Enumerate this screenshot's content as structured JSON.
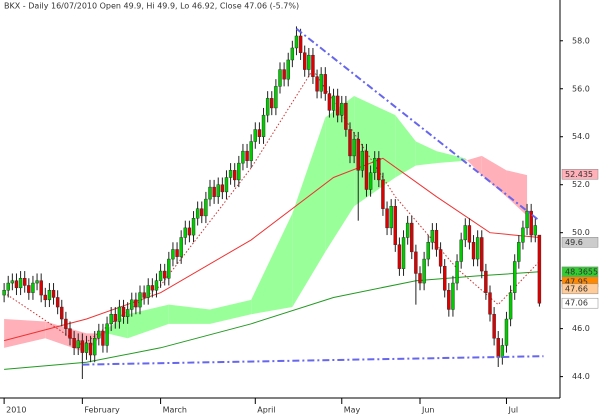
{
  "chart_data": {
    "type": "candlestick",
    "title": "BKX - Daily 16/07/2010 Open 49.9, Hi 49.9, Lo 46.92, Close 47.06 (-5.7%)",
    "up_color": "#00cc00",
    "down_color": "#dd0000",
    "ylim": [
      43.15,
      59.7
    ],
    "yticks": [
      {
        "value": 44,
        "label": "44.0"
      },
      {
        "value": 46,
        "label": "46.0"
      },
      {
        "value": 48,
        "label": "48.0"
      },
      {
        "value": 50,
        "label": "50.0"
      },
      {
        "value": 52,
        "label": "52.0"
      },
      {
        "value": 54,
        "label": "54.0"
      },
      {
        "value": 56,
        "label": "56.0"
      },
      {
        "value": 58,
        "label": "58.0"
      }
    ],
    "xlim": [
      -1,
      135
    ],
    "xticks": [
      {
        "value": 0,
        "label": "2010"
      },
      {
        "value": 19,
        "label": "February"
      },
      {
        "value": 38,
        "label": "March"
      },
      {
        "value": 61,
        "label": "April"
      },
      {
        "value": 82,
        "label": "May"
      },
      {
        "value": 101,
        "label": "Jun"
      },
      {
        "value": 122,
        "label": "Jul"
      }
    ],
    "candles": [
      [
        47.4,
        47.9,
        47.1,
        47.6
      ],
      [
        47.6,
        48.2,
        47.3,
        47.9
      ],
      [
        47.9,
        48.3,
        47.6,
        48.0
      ],
      [
        48.0,
        48.3,
        47.4,
        47.7
      ],
      [
        47.7,
        48.4,
        47.4,
        48.1
      ],
      [
        48.1,
        48.4,
        47.5,
        47.8
      ],
      [
        47.8,
        48.1,
        47.2,
        47.5
      ],
      [
        47.5,
        48.2,
        47.2,
        47.9
      ],
      [
        47.9,
        48.3,
        47.6,
        48.0
      ],
      [
        48.0,
        48.3,
        47.1,
        47.4
      ],
      [
        47.4,
        47.7,
        46.9,
        47.2
      ],
      [
        47.2,
        47.9,
        46.9,
        47.6
      ],
      [
        47.6,
        47.9,
        47.0,
        47.3
      ],
      [
        47.3,
        47.6,
        46.6,
        46.9
      ],
      [
        46.9,
        47.2,
        46.1,
        46.4
      ],
      [
        46.4,
        46.7,
        45.7,
        46.0
      ],
      [
        46.0,
        46.3,
        45.3,
        45.6
      ],
      [
        45.6,
        45.9,
        44.9,
        45.2
      ],
      [
        45.2,
        45.8,
        44.9,
        45.5
      ],
      [
        45.5,
        45.8,
        43.9,
        45.0
      ],
      [
        45.0,
        45.7,
        44.7,
        45.4
      ],
      [
        45.4,
        45.7,
        44.6,
        44.9
      ],
      [
        44.9,
        45.9,
        44.6,
        45.6
      ],
      [
        45.6,
        46.2,
        45.3,
        45.9
      ],
      [
        45.9,
        46.2,
        45.0,
        45.3
      ],
      [
        45.3,
        46.5,
        45.0,
        46.2
      ],
      [
        46.2,
        46.9,
        45.9,
        46.6
      ],
      [
        46.6,
        46.9,
        46.0,
        46.3
      ],
      [
        46.3,
        47.2,
        46.0,
        46.9
      ],
      [
        46.9,
        47.2,
        46.2,
        46.5
      ],
      [
        46.5,
        47.1,
        46.2,
        46.8
      ],
      [
        46.8,
        47.5,
        46.5,
        47.2
      ],
      [
        47.2,
        47.5,
        46.6,
        46.9
      ],
      [
        46.9,
        47.8,
        46.6,
        47.5
      ],
      [
        47.5,
        47.8,
        47.0,
        47.3
      ],
      [
        47.3,
        48.1,
        47.0,
        47.8
      ],
      [
        47.8,
        48.1,
        47.3,
        47.6
      ],
      [
        47.6,
        48.3,
        47.3,
        48.0
      ],
      [
        48.0,
        48.7,
        47.7,
        48.4
      ],
      [
        48.4,
        48.7,
        47.8,
        48.1
      ],
      [
        48.1,
        49.2,
        47.8,
        48.9
      ],
      [
        48.9,
        49.6,
        48.6,
        49.3
      ],
      [
        49.3,
        49.6,
        48.7,
        49.0
      ],
      [
        49.0,
        50.1,
        48.7,
        49.8
      ],
      [
        49.8,
        50.5,
        49.5,
        50.2
      ],
      [
        50.2,
        50.5,
        49.6,
        49.9
      ],
      [
        49.9,
        50.9,
        49.6,
        50.6
      ],
      [
        50.6,
        51.3,
        50.3,
        51.0
      ],
      [
        51.0,
        51.3,
        50.4,
        50.7
      ],
      [
        50.7,
        51.7,
        50.4,
        51.4
      ],
      [
        51.4,
        52.2,
        51.1,
        51.9
      ],
      [
        51.9,
        52.2,
        51.2,
        51.5
      ],
      [
        51.5,
        52.3,
        51.2,
        52.0
      ],
      [
        52.0,
        52.3,
        51.4,
        51.7
      ],
      [
        51.7,
        52.6,
        51.4,
        52.3
      ],
      [
        52.3,
        52.9,
        52.0,
        52.6
      ],
      [
        52.6,
        52.9,
        51.9,
        52.2
      ],
      [
        52.2,
        53.2,
        51.9,
        52.9
      ],
      [
        52.9,
        53.7,
        52.6,
        53.4
      ],
      [
        53.4,
        53.7,
        52.7,
        53.0
      ],
      [
        53.0,
        54.1,
        52.7,
        53.8
      ],
      [
        53.8,
        54.6,
        53.5,
        54.3
      ],
      [
        54.3,
        54.6,
        53.7,
        54.0
      ],
      [
        54.0,
        55.2,
        53.7,
        54.9
      ],
      [
        54.9,
        55.9,
        54.6,
        55.6
      ],
      [
        55.6,
        55.9,
        54.9,
        55.2
      ],
      [
        55.2,
        56.4,
        54.9,
        56.1
      ],
      [
        56.1,
        57.1,
        55.8,
        56.8
      ],
      [
        56.8,
        57.1,
        56.1,
        56.4
      ],
      [
        56.4,
        57.5,
        56.1,
        57.2
      ],
      [
        57.2,
        58.0,
        56.9,
        57.7
      ],
      [
        57.7,
        58.6,
        57.4,
        58.2
      ],
      [
        58.2,
        58.5,
        57.2,
        57.5
      ],
      [
        57.5,
        57.8,
        56.5,
        56.8
      ],
      [
        56.8,
        57.7,
        56.5,
        57.4
      ],
      [
        57.4,
        57.7,
        56.2,
        56.5
      ],
      [
        56.5,
        56.8,
        55.6,
        55.9
      ],
      [
        55.9,
        56.9,
        55.6,
        56.6
      ],
      [
        56.6,
        56.9,
        55.5,
        55.8
      ],
      [
        55.8,
        56.1,
        54.8,
        55.1
      ],
      [
        55.1,
        56.0,
        54.8,
        55.7
      ],
      [
        55.7,
        56.0,
        54.6,
        54.9
      ],
      [
        54.9,
        55.7,
        54.6,
        55.4
      ],
      [
        55.4,
        55.7,
        54.0,
        54.3
      ],
      [
        54.3,
        54.6,
        52.9,
        53.2
      ],
      [
        53.2,
        54.2,
        52.9,
        53.9
      ],
      [
        53.9,
        54.2,
        50.5,
        52.6
      ],
      [
        52.6,
        53.7,
        52.3,
        53.4
      ],
      [
        53.4,
        53.7,
        51.5,
        51.8
      ],
      [
        51.8,
        52.8,
        51.5,
        52.5
      ],
      [
        52.5,
        53.4,
        52.2,
        53.1
      ],
      [
        53.1,
        53.4,
        51.9,
        52.2
      ],
      [
        52.2,
        52.5,
        50.7,
        51.0
      ],
      [
        51.0,
        51.3,
        49.9,
        50.2
      ],
      [
        50.2,
        51.4,
        49.9,
        51.1
      ],
      [
        51.1,
        51.4,
        49.2,
        49.5
      ],
      [
        49.5,
        49.8,
        48.2,
        48.5
      ],
      [
        48.5,
        50.1,
        48.2,
        49.8
      ],
      [
        49.8,
        50.7,
        49.5,
        50.4
      ],
      [
        50.4,
        50.7,
        48.9,
        49.2
      ],
      [
        49.2,
        49.5,
        47.0,
        48.3
      ],
      [
        48.3,
        48.6,
        47.6,
        47.9
      ],
      [
        47.9,
        49.2,
        47.6,
        48.9
      ],
      [
        48.9,
        49.9,
        48.6,
        49.6
      ],
      [
        49.6,
        50.4,
        49.3,
        50.1
      ],
      [
        50.1,
        50.4,
        49.0,
        49.3
      ],
      [
        49.3,
        49.6,
        48.3,
        48.6
      ],
      [
        48.6,
        48.9,
        47.3,
        47.6
      ],
      [
        47.6,
        47.9,
        46.5,
        46.8
      ],
      [
        46.8,
        48.2,
        46.5,
        47.9
      ],
      [
        47.9,
        49.1,
        47.6,
        48.8
      ],
      [
        48.8,
        50.0,
        48.5,
        49.7
      ],
      [
        49.7,
        50.6,
        49.4,
        50.3
      ],
      [
        50.3,
        50.6,
        49.3,
        49.6
      ],
      [
        49.6,
        49.9,
        48.6,
        48.9
      ],
      [
        48.9,
        50.1,
        48.6,
        49.8
      ],
      [
        49.8,
        50.1,
        48.1,
        48.4
      ],
      [
        48.4,
        48.7,
        47.2,
        47.5
      ],
      [
        47.5,
        47.8,
        46.3,
        46.6
      ],
      [
        46.6,
        46.9,
        45.3,
        45.6
      ],
      [
        45.6,
        45.9,
        44.4,
        44.8
      ],
      [
        44.8,
        45.6,
        44.5,
        45.3
      ],
      [
        45.3,
        46.7,
        45.0,
        46.4
      ],
      [
        46.4,
        47.8,
        46.1,
        47.5
      ],
      [
        47.5,
        49.1,
        47.2,
        48.8
      ],
      [
        48.8,
        49.9,
        48.5,
        49.6
      ],
      [
        49.6,
        50.5,
        49.3,
        50.2
      ],
      [
        50.2,
        51.2,
        49.9,
        50.9
      ],
      [
        50.9,
        51.2,
        49.6,
        49.9
      ],
      [
        49.9,
        50.6,
        49.6,
        50.3
      ],
      [
        49.9,
        49.9,
        46.92,
        47.06
      ]
    ],
    "cloud": {
      "up_color": "#99ff99",
      "down_color": "#ffb0b8",
      "x": [
        0,
        10,
        20,
        25,
        30,
        40,
        50,
        60,
        70,
        78,
        85,
        95,
        100,
        105,
        112,
        116,
        122,
        127
      ],
      "span_a": [
        45.2,
        45.6,
        45.0,
        46.0,
        46.6,
        47.0,
        46.8,
        47.2,
        50.8,
        54.8,
        55.7,
        54.9,
        53.8,
        53.4,
        53.1,
        52.4,
        51.5,
        50.7
      ],
      "span_b": [
        46.4,
        46.3,
        45.8,
        45.8,
        45.6,
        46.2,
        46.2,
        46.6,
        46.9,
        49.2,
        51.1,
        52.3,
        52.8,
        52.9,
        53.0,
        53.2,
        52.6,
        52.4
      ]
    },
    "series": [
      {
        "color": "#ee3333",
        "dashed": false,
        "x": [
          0,
          20,
          38,
          60,
          80,
          92,
          105,
          118,
          130
        ],
        "values": [
          45.5,
          46.4,
          47.5,
          49.7,
          52.3,
          53.1,
          51.5,
          50.0,
          49.8
        ]
      },
      {
        "color": "#229922",
        "dashed": false,
        "x": [
          0,
          20,
          38,
          60,
          80,
          100,
          115,
          130
        ],
        "values": [
          44.3,
          44.6,
          45.2,
          46.2,
          47.3,
          48.0,
          48.2,
          48.37
        ]
      },
      {
        "color": "#cc3333",
        "dashed": true,
        "x": [
          0,
          19,
          38,
          60,
          75,
          95,
          110,
          120,
          130
        ],
        "values": [
          47.5,
          45.3,
          47.8,
          52.7,
          56.8,
          51.5,
          48.5,
          47.0,
          48.8
        ]
      }
    ],
    "trendlines": [
      {
        "color": "#6666ee",
        "x": [
          71,
          130
        ],
        "values": [
          58.5,
          50.5
        ]
      },
      {
        "color": "#6666ee",
        "x": [
          19,
          131
        ],
        "values": [
          44.5,
          44.85
        ]
      }
    ],
    "price_labels": [
      {
        "value": 52.435,
        "label": "52.435",
        "color": "#ffb0b8"
      },
      {
        "value": 49.6,
        "label": "49.6",
        "color": "#cccccc"
      },
      {
        "value": 48.3655,
        "label": "48.3655",
        "color": "#33cc33"
      },
      {
        "value": 47.95,
        "label": "47.95",
        "color": "#ff8800"
      },
      {
        "value": 47.66,
        "label": "47.66",
        "color": "#ffcc99"
      },
      {
        "value": 47.06,
        "label": "47.06",
        "color": "#ffffff"
      }
    ]
  }
}
